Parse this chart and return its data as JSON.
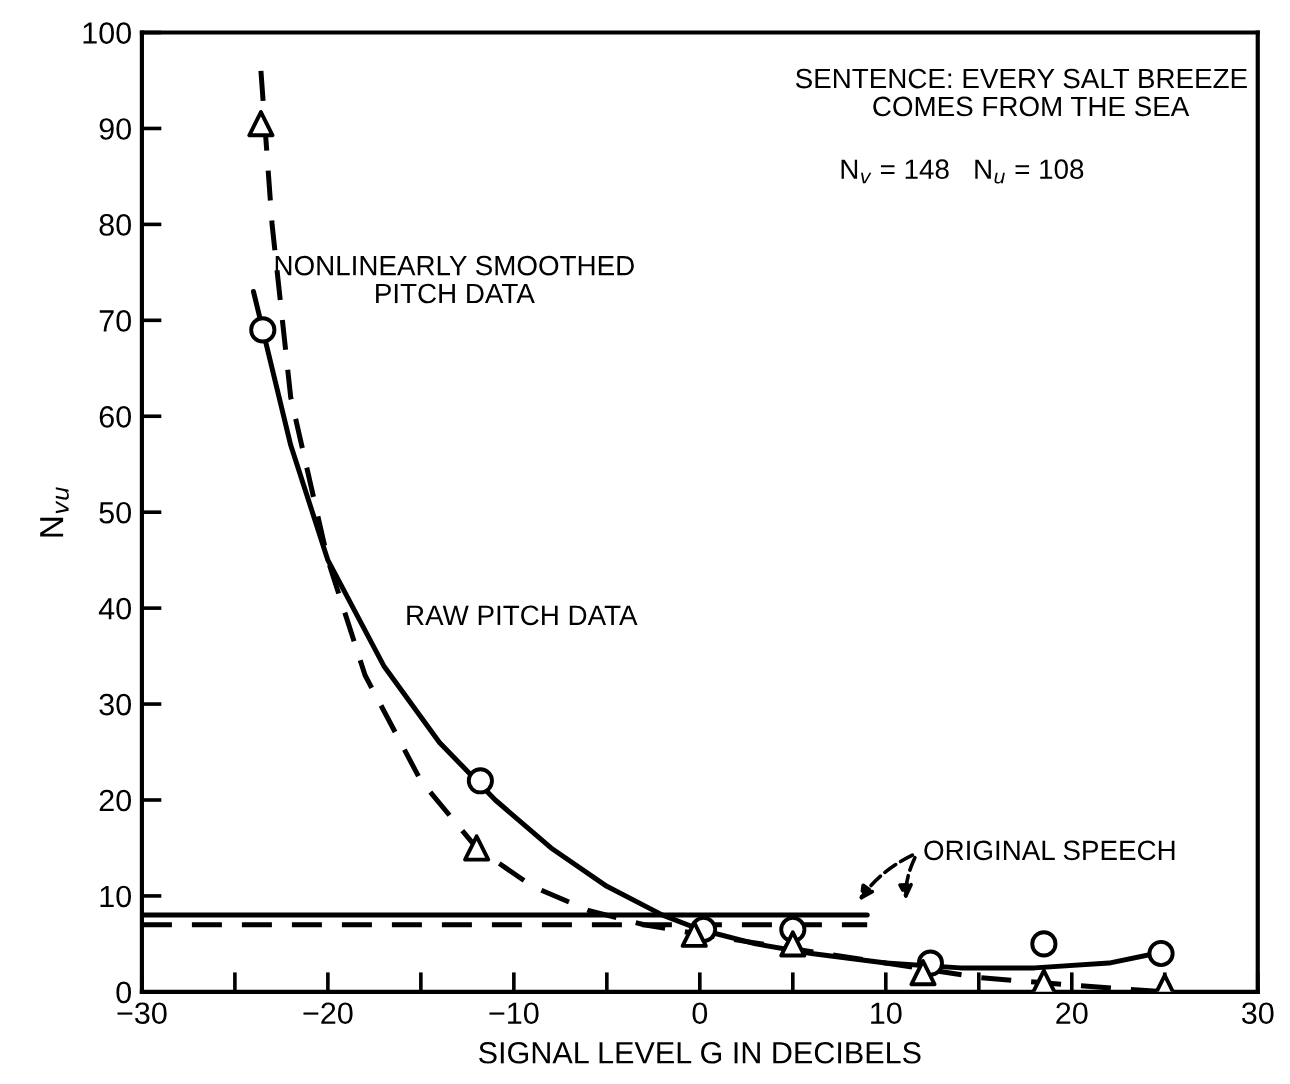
{
  "chart_data": {
    "type": "line",
    "xlabel": "SIGNAL LEVEL G IN DECIBELS",
    "ylabel": "N$_{vu}$",
    "xlim": [
      -30,
      30
    ],
    "ylim": [
      0,
      100
    ],
    "xticks": [
      -30,
      {
        "value": -25,
        "label": null
      },
      -20,
      {
        "value": -15,
        "label": null
      },
      -10,
      {
        "value": -5,
        "label": null
      },
      0,
      {
        "value": 5,
        "label": null
      },
      10,
      {
        "value": 15,
        "label": null
      },
      20,
      {
        "value": 25,
        "label": null
      },
      30
    ],
    "yticks": [
      0,
      10,
      20,
      30,
      40,
      50,
      60,
      70,
      80,
      90,
      100
    ],
    "series": [
      {
        "line_style": "solid",
        "marker": "none",
        "color": "#000000",
        "x": [
          -24,
          -22,
          -20,
          -17,
          -14,
          -11,
          -8,
          -5,
          -2,
          0,
          3,
          6,
          10,
          14,
          18,
          22,
          24.5
        ],
        "values": [
          73,
          57,
          45,
          34,
          26,
          20,
          15,
          11,
          8,
          6.5,
          5,
          4,
          3,
          2.5,
          2.5,
          3,
          4
        ]
      },
      {
        "type": "line",
        "line_style": "dashed",
        "marker": "none",
        "color": "#000000",
        "x": [
          -23.6,
          -23,
          -22,
          -20,
          -18,
          -15,
          -12,
          -9,
          -6,
          -3,
          0,
          5,
          10,
          15,
          20,
          25
        ],
        "values": [
          96,
          80,
          62,
          45,
          33,
          22,
          15,
          11,
          8.5,
          7,
          6,
          4.5,
          3,
          1.5,
          0.7,
          0
        ]
      },
      {
        "type": "scatter",
        "marker": "circle",
        "color": "#000000",
        "x": [
          -23.5,
          -11.8,
          0.2,
          5,
          12.4,
          18.5,
          24.8
        ],
        "values": [
          69,
          22,
          6.5,
          6.5,
          3,
          5,
          4
        ]
      },
      {
        "type": "scatter",
        "marker": "triangle",
        "color": "#000000",
        "x": [
          -23.6,
          -12,
          -0.3,
          5,
          12,
          18.5,
          25
        ],
        "values": [
          90.5,
          15,
          6,
          5,
          2,
          1,
          0.5
        ]
      },
      {
        "type": "line",
        "line_style": "solid",
        "marker": "none",
        "color": "#000000",
        "x": [
          -30,
          9
        ],
        "values": [
          8,
          8
        ]
      },
      {
        "type": "line",
        "line_style": "dashed",
        "marker": "none",
        "color": "#000000",
        "x": [
          -30,
          9
        ],
        "values": [
          7,
          7
        ]
      }
    ],
    "annotations": [
      "SENTENCE: EVERY SALT BREEZE\n          COMES FROM THE SEA",
      "N$_{v}$ = 148   N$_{u}$ = 108",
      "NONLINEARLY SMOOTHED\nPITCH DATA",
      "RAW PITCH DATA",
      "ORIGINAL SPEECH"
    ]
  }
}
